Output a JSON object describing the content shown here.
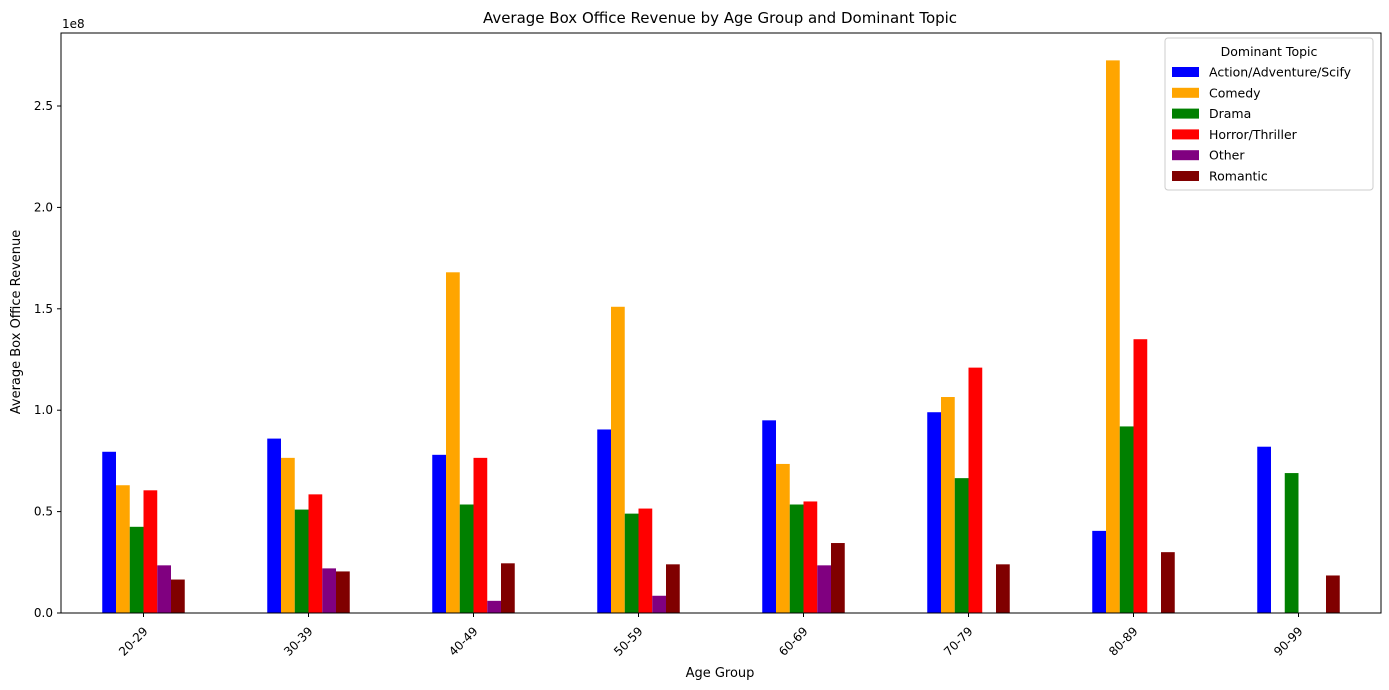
{
  "chart_data": {
    "type": "bar",
    "title": "Average Box Office Revenue by Age Group and Dominant Topic",
    "xlabel": "Age Group",
    "ylabel": "Average Box Office Revenue",
    "y_scale_label": "1e8",
    "ylim": [
      0,
      2.86
    ],
    "y_ticks": [
      0.0,
      0.5,
      1.0,
      1.5,
      2.0,
      2.5
    ],
    "y_tick_labels": [
      "0.0",
      "0.5",
      "1.0",
      "1.5",
      "2.0",
      "2.5"
    ],
    "grid": false,
    "legend_title": "Dominant Topic",
    "legend_position": "top-right",
    "categories": [
      "20-29",
      "30-39",
      "40-49",
      "50-59",
      "60-69",
      "70-79",
      "80-89",
      "90-99"
    ],
    "series": [
      {
        "name": "Action/Adventure/Scify",
        "color": "#0000ff",
        "values": [
          0.795,
          0.86,
          0.78,
          0.905,
          0.95,
          0.99,
          0.405,
          0.82
        ]
      },
      {
        "name": "Comedy",
        "color": "#ffa500",
        "values": [
          0.63,
          0.765,
          1.68,
          1.51,
          0.735,
          1.065,
          2.725,
          null
        ]
      },
      {
        "name": "Drama",
        "color": "#008000",
        "values": [
          0.425,
          0.51,
          0.535,
          0.49,
          0.535,
          0.665,
          0.92,
          0.69
        ]
      },
      {
        "name": "Horror/Thriller",
        "color": "#ff0000",
        "values": [
          0.605,
          0.585,
          0.765,
          0.515,
          0.55,
          1.21,
          1.35,
          null
        ]
      },
      {
        "name": "Other",
        "color": "#800080",
        "values": [
          0.235,
          0.22,
          0.06,
          0.085,
          0.235,
          null,
          null,
          null
        ]
      },
      {
        "name": "Romantic",
        "color": "#800000",
        "values": [
          0.165,
          0.205,
          0.245,
          0.24,
          0.345,
          0.24,
          0.3,
          0.185
        ]
      }
    ]
  }
}
